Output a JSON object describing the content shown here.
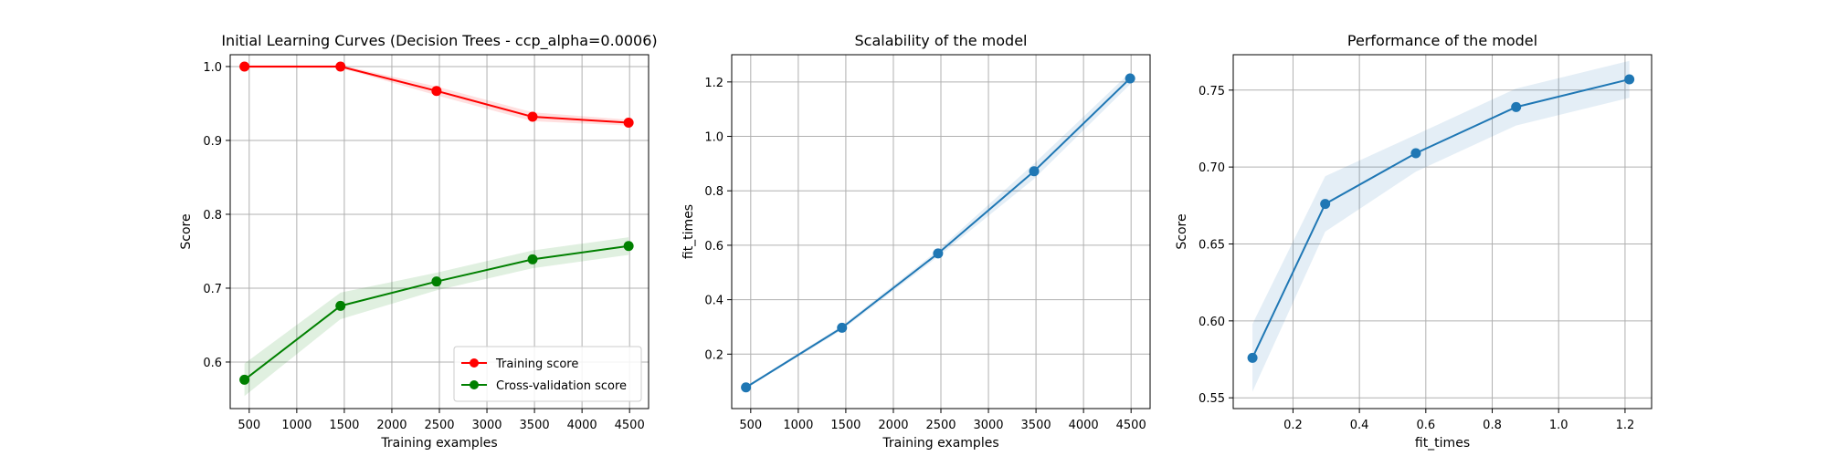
{
  "chart_data": [
    {
      "type": "line",
      "title": "Initial Learning Curves (Decision Trees - ccp_alpha=0.0006)",
      "xlabel": "Training examples",
      "ylabel": "Score",
      "xlim": [
        300,
        4700
      ],
      "ylim": [
        0.537,
        1.016
      ],
      "xticks": [
        500,
        1000,
        1500,
        2000,
        2500,
        3000,
        3500,
        4000,
        4500
      ],
      "xtick_labels": [
        "500",
        "1000",
        "1500",
        "2000",
        "2500",
        "3000",
        "3500",
        "4000",
        "4500"
      ],
      "yticks": [
        0.6,
        0.7,
        0.8,
        0.9,
        1.0
      ],
      "ytick_labels": [
        "0.6",
        "0.7",
        "0.8",
        "0.9",
        "1.0"
      ],
      "grid": true,
      "legend": "lower-right",
      "series": [
        {
          "name": "Training score",
          "color": "#ff0000",
          "x": [
            450,
            1460,
            2470,
            3480,
            4490
          ],
          "y": [
            1.0,
            1.0,
            0.967,
            0.932,
            0.924
          ],
          "band": [
            0.002,
            0.002,
            0.006,
            0.006,
            0.004
          ]
        },
        {
          "name": "Cross-validation score",
          "color": "#008000",
          "x": [
            450,
            1460,
            2470,
            3480,
            4490
          ],
          "y": [
            0.576,
            0.676,
            0.709,
            0.739,
            0.757
          ],
          "band": [
            0.022,
            0.018,
            0.012,
            0.012,
            0.012
          ]
        }
      ]
    },
    {
      "type": "line",
      "title": "Scalability of the model",
      "xlabel": "Training examples",
      "ylabel": "fit_times",
      "xlim": [
        300,
        4700
      ],
      "ylim": [
        0.0,
        1.3
      ],
      "xticks": [
        500,
        1000,
        1500,
        2000,
        2500,
        3000,
        3500,
        4000,
        4500
      ],
      "xtick_labels": [
        "500",
        "1000",
        "1500",
        "2000",
        "2500",
        "3000",
        "3500",
        "4000",
        "4500"
      ],
      "yticks": [
        0.2,
        0.4,
        0.6,
        0.8,
        1.0,
        1.2
      ],
      "ytick_labels": [
        "0.2",
        "0.4",
        "0.6",
        "0.8",
        "1.0",
        "1.2"
      ],
      "grid": true,
      "series": [
        {
          "color": "#1f77b4",
          "x": [
            450,
            1460,
            2470,
            3480,
            4490
          ],
          "y": [
            0.078,
            0.297,
            0.57,
            0.872,
            1.213
          ],
          "band": [
            0.004,
            0.008,
            0.012,
            0.028,
            0.022
          ]
        }
      ]
    },
    {
      "type": "line",
      "title": "Performance of the model",
      "xlabel": "fit_times",
      "ylabel": "Score",
      "xlim": [
        0.02,
        1.28
      ],
      "ylim": [
        0.543,
        0.773
      ],
      "xticks": [
        0.2,
        0.4,
        0.6,
        0.8,
        1.0,
        1.2
      ],
      "xtick_labels": [
        "0.2",
        "0.4",
        "0.6",
        "0.8",
        "1.0",
        "1.2"
      ],
      "yticks": [
        0.55,
        0.6,
        0.65,
        0.7,
        0.75
      ],
      "ytick_labels": [
        "0.55",
        "0.60",
        "0.65",
        "0.70",
        "0.75"
      ],
      "grid": true,
      "series": [
        {
          "color": "#1f77b4",
          "x": [
            0.078,
            0.297,
            0.57,
            0.872,
            1.213
          ],
          "y": [
            0.576,
            0.676,
            0.709,
            0.739,
            0.757
          ],
          "band": [
            0.022,
            0.018,
            0.012,
            0.012,
            0.012
          ]
        }
      ]
    }
  ]
}
